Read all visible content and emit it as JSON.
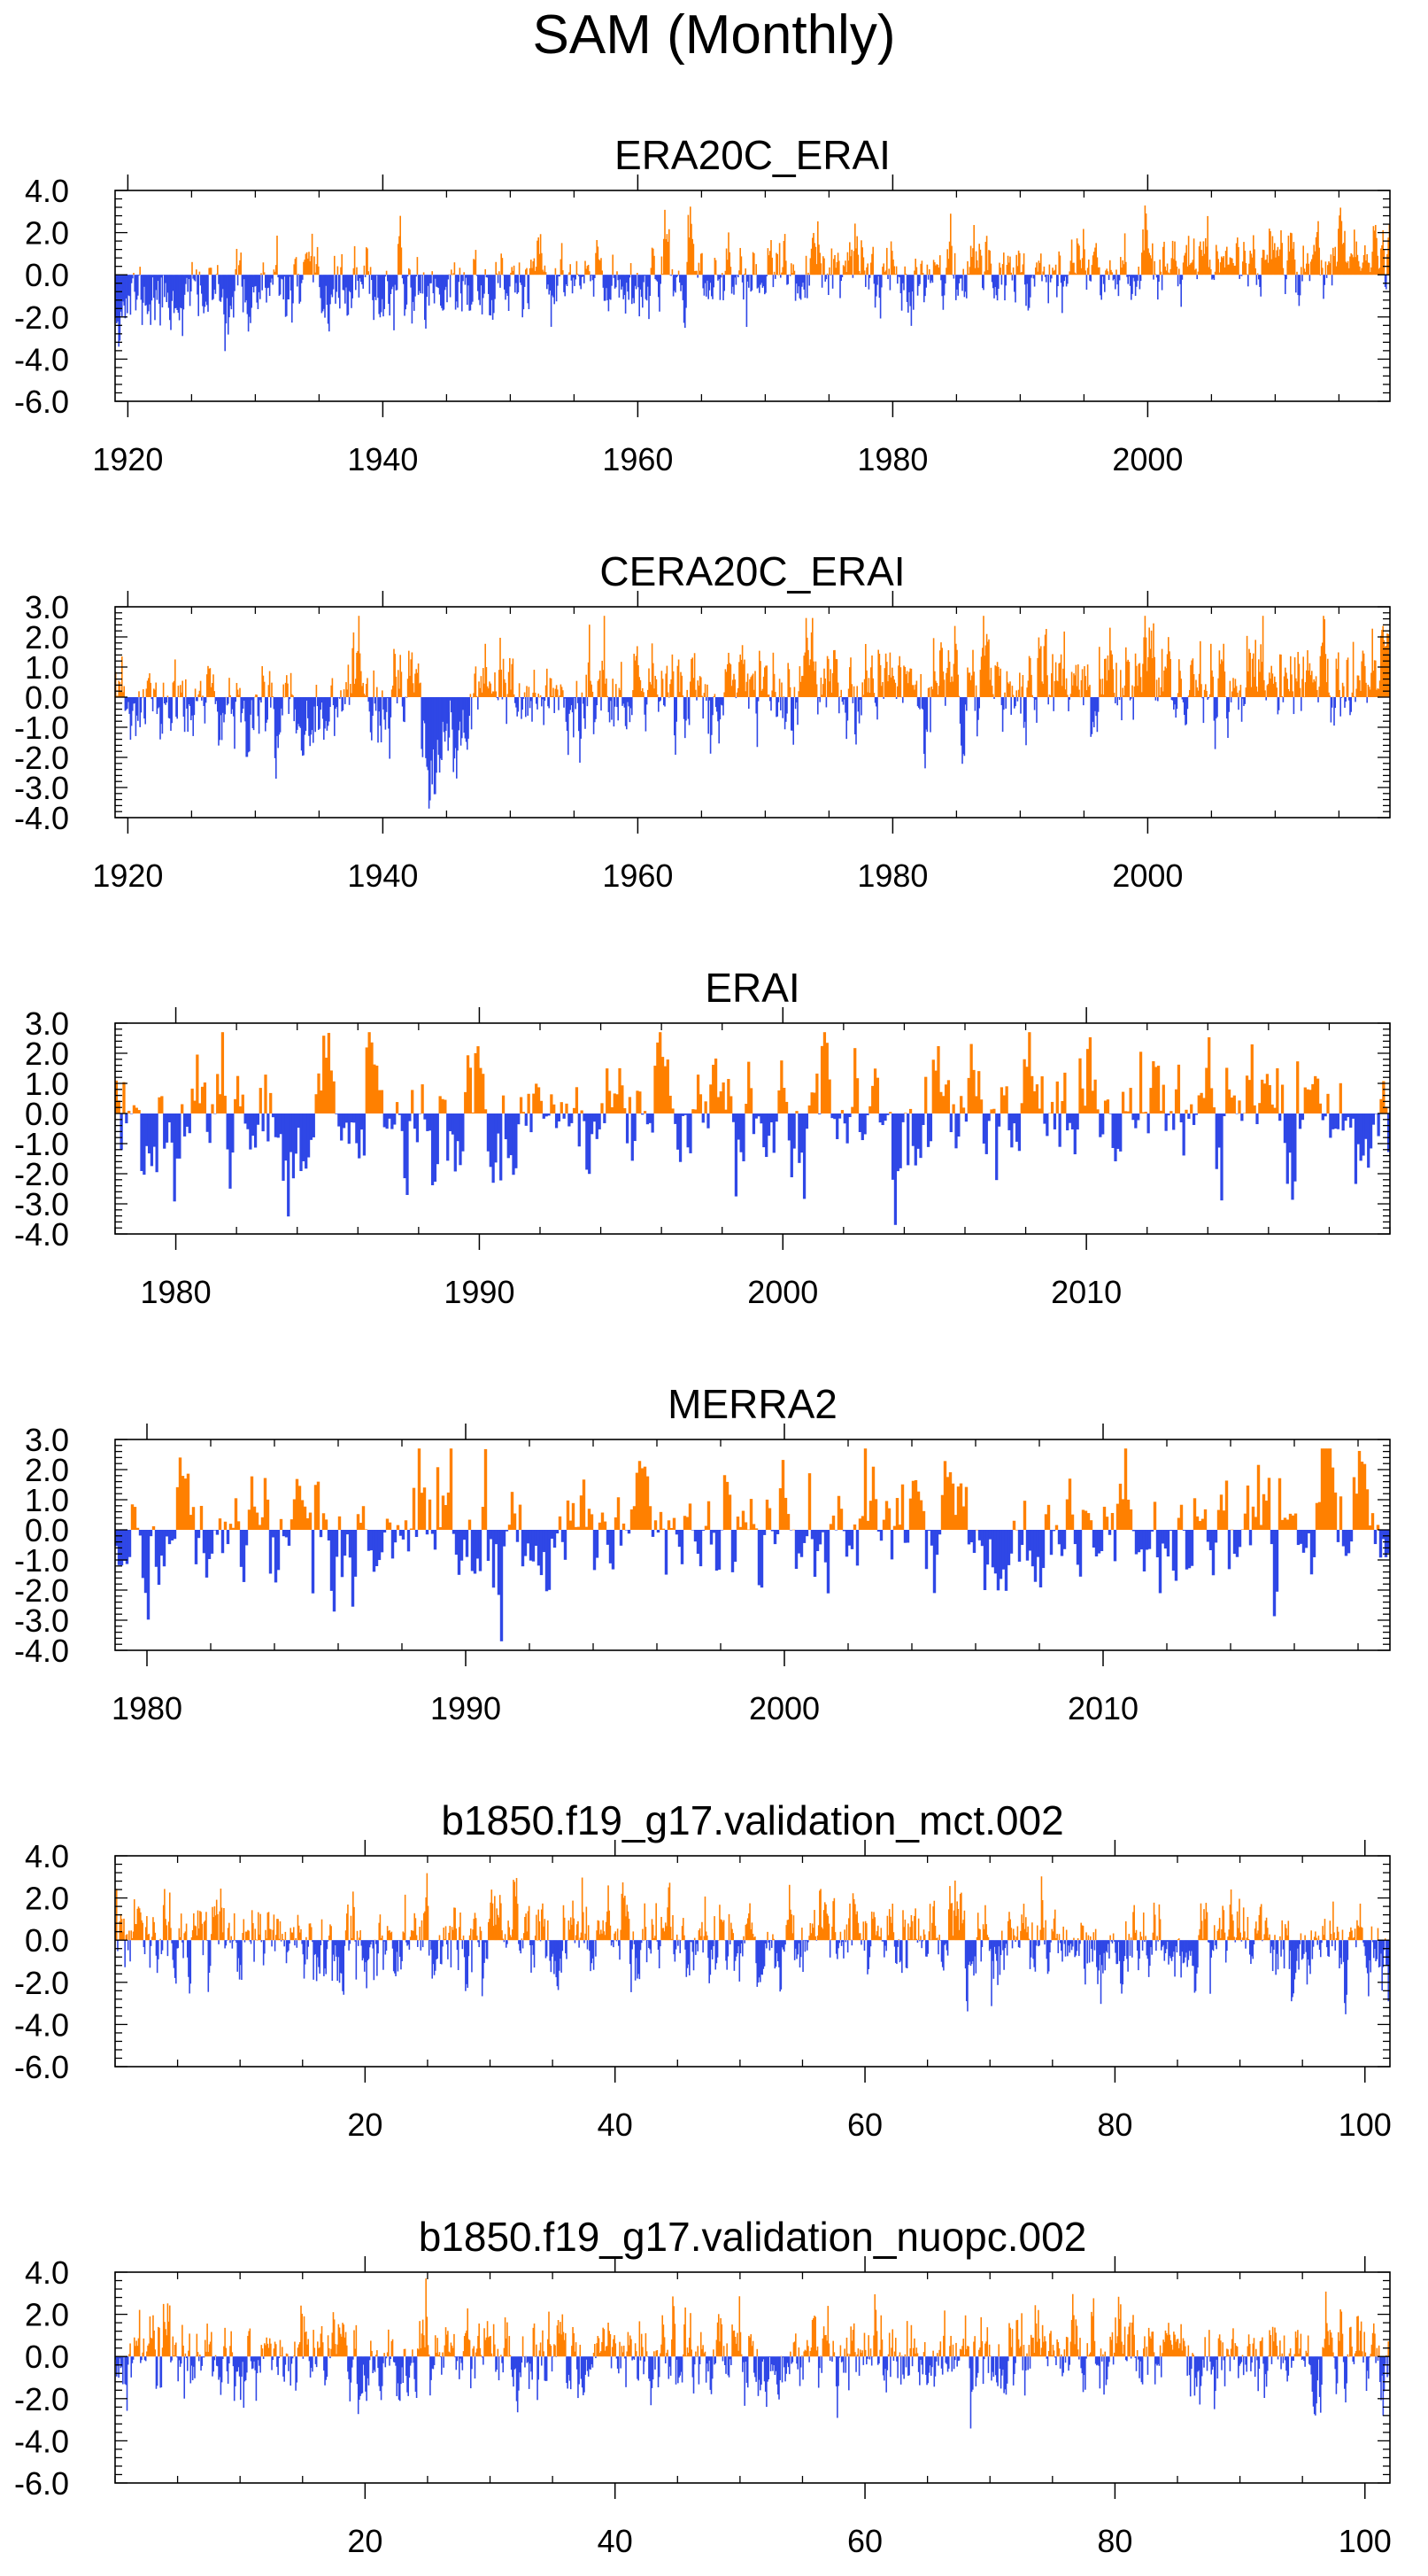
{
  "title": "SAM (Monthly)",
  "colors": {
    "positive": "#ff8000",
    "negative": "#2f47e6",
    "axis": "#000000"
  },
  "chart_data": [
    {
      "type": "bar",
      "title": "ERA20C_ERAI",
      "xrange": [
        1919,
        2019
      ],
      "ylim": [
        -6.0,
        4.0
      ],
      "yticks": [
        4.0,
        2.0,
        0.0,
        -2.0,
        -4.0,
        -6.0
      ],
      "ytick_labels": [
        "4.0",
        "2.0",
        "0.0",
        "-2.0",
        "-4.0",
        "-6.0"
      ],
      "xticks": [
        1920,
        1940,
        1960,
        1980,
        2000
      ],
      "xtick_labels": [
        "1920",
        "1940",
        "1960",
        "1980",
        "2000"
      ],
      "x_minor_step": 5,
      "trend": {
        "start": -1.2,
        "end": 1.05
      },
      "noise": 0.75,
      "spikes": [],
      "seed": 11
    },
    {
      "type": "bar",
      "title": "CERA20C_ERAI",
      "xrange": [
        1919,
        2019
      ],
      "ylim": [
        -4.0,
        3.0
      ],
      "yticks": [
        3.0,
        2.0,
        1.0,
        0.0,
        -1.0,
        -2.0,
        -3.0,
        -4.0
      ],
      "ytick_labels": [
        "3.0",
        "2.0",
        "1.0",
        "0.0",
        "-1.0",
        "-2.0",
        "-3.0",
        "-4.0"
      ],
      "xticks": [
        1920,
        1940,
        1960,
        1980,
        2000
      ],
      "xtick_labels": [
        "1920",
        "1940",
        "1960",
        "1980",
        "2000"
      ],
      "x_minor_step": 5,
      "trend": {
        "start": -0.45,
        "end": 0.75
      },
      "noise": 0.65,
      "spikes": [
        {
          "x0": 1943,
          "x1": 1947,
          "amp": -1.6
        }
      ],
      "seed": 23
    },
    {
      "type": "bar",
      "title": "ERAI",
      "xrange": [
        1978,
        2020
      ],
      "ylim": [
        -4.0,
        3.0
      ],
      "yticks": [
        3.0,
        2.0,
        1.0,
        0.0,
        -1.0,
        -2.0,
        -3.0,
        -4.0
      ],
      "ytick_labels": [
        "3.0",
        "2.0",
        "1.0",
        "0.0",
        "-1.0",
        "-2.0",
        "-3.0",
        "-4.0"
      ],
      "xticks": [
        1980,
        1990,
        2000,
        2010
      ],
      "xtick_labels": [
        "1980",
        "1990",
        "2000",
        "2010"
      ],
      "x_minor_step": 2,
      "trend": {
        "start": 0.0,
        "end": 0.15
      },
      "noise": 0.95,
      "spikes": [],
      "seed": 37
    },
    {
      "type": "bar",
      "title": "MERRA2",
      "xrange": [
        1979,
        2019
      ],
      "ylim": [
        -4.0,
        3.0
      ],
      "yticks": [
        3.0,
        2.0,
        1.0,
        0.0,
        -1.0,
        -2.0,
        -3.0,
        -4.0
      ],
      "ytick_labels": [
        "3.0",
        "2.0",
        "1.0",
        "0.0",
        "-1.0",
        "-2.0",
        "-3.0",
        "-4.0"
      ],
      "xticks": [
        1980,
        1990,
        2000,
        2010
      ],
      "xtick_labels": [
        "1980",
        "1990",
        "2000",
        "2010"
      ],
      "x_minor_step": 2,
      "trend": {
        "start": 0.0,
        "end": 0.15
      },
      "noise": 0.95,
      "spikes": [],
      "seed": 41
    },
    {
      "type": "bar",
      "title": "b1850.f19_g17.validation_mct.002",
      "xrange": [
        0,
        102
      ],
      "ylim": [
        -6.0,
        4.0
      ],
      "yticks": [
        4.0,
        2.0,
        0.0,
        -2.0,
        -4.0,
        -6.0
      ],
      "ytick_labels": [
        "4.0",
        "2.0",
        "0.0",
        "-2.0",
        "-4.0",
        "-6.0"
      ],
      "xticks": [
        20,
        40,
        60,
        80,
        100
      ],
      "xtick_labels": [
        "20",
        "40",
        "60",
        "80",
        "100"
      ],
      "x_minor_step": 5,
      "trend": {
        "start": 0.0,
        "end": 0.0
      },
      "noise": 0.85,
      "spikes": [],
      "seed": 53
    },
    {
      "type": "bar",
      "title": "b1850.f19_g17.validation_nuopc.002",
      "xrange": [
        0,
        102
      ],
      "ylim": [
        -6.0,
        4.0
      ],
      "yticks": [
        4.0,
        2.0,
        0.0,
        -2.0,
        -4.0,
        -6.0
      ],
      "ytick_labels": [
        "4.0",
        "2.0",
        "0.0",
        "-2.0",
        "-4.0",
        "-6.0"
      ],
      "xticks": [
        20,
        40,
        60,
        80,
        100
      ],
      "xtick_labels": [
        "20",
        "40",
        "60",
        "80",
        "100"
      ],
      "x_minor_step": 5,
      "trend": {
        "start": 0.0,
        "end": 0.0
      },
      "noise": 0.85,
      "spikes": [],
      "seed": 67
    }
  ]
}
